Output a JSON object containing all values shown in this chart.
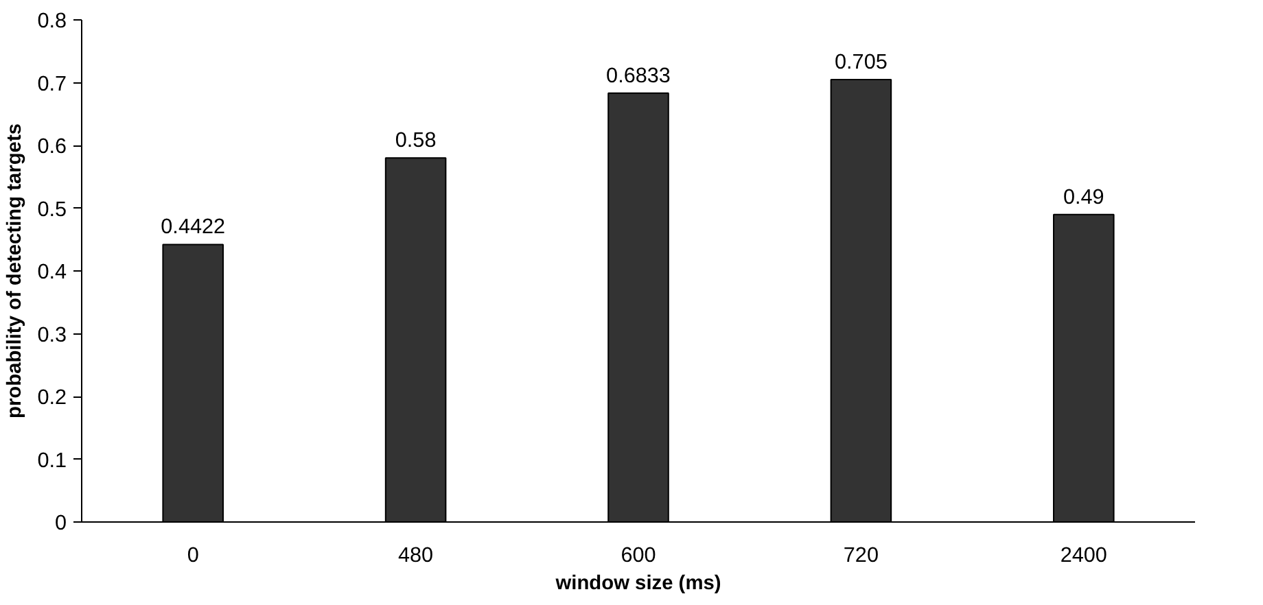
{
  "chart_data": {
    "type": "bar",
    "xlabel": "window size (ms)",
    "ylabel": "probability of detecting targets",
    "categories": [
      "0",
      "480",
      "600",
      "720",
      "2400"
    ],
    "values": [
      0.4422,
      0.58,
      0.6833,
      0.705,
      0.49
    ],
    "color": "#333333",
    "ylim": [
      0,
      0.8
    ],
    "yticks": [
      0,
      0.1,
      0.2,
      0.3,
      0.4,
      0.5,
      0.6,
      0.7,
      0.8
    ],
    "data_labels": true,
    "grid": false
  }
}
